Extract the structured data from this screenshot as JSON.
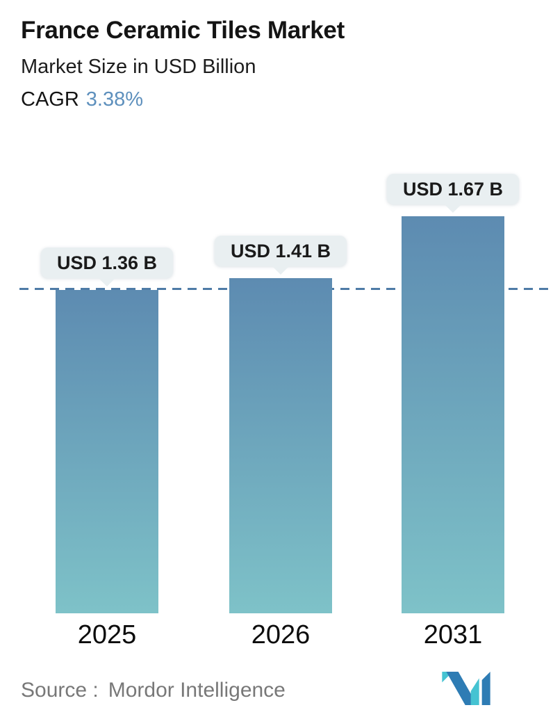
{
  "header": {
    "title": "France Ceramic Tiles Market",
    "subtitle": "Market Size in USD Billion",
    "cagr_label": "CAGR",
    "cagr_value": "3.38%"
  },
  "chart_data": {
    "type": "bar",
    "title": "France Ceramic Tiles Market",
    "subtitle": "Market Size in USD Billion",
    "unit": "USD Billion",
    "categories": [
      "2025",
      "2026",
      "2031"
    ],
    "values": [
      1.36,
      1.41,
      1.67
    ],
    "data_labels": [
      "USD 1.36 B",
      "USD 1.41 B",
      "USD 1.67 B"
    ],
    "cagr_percent": 3.38,
    "reference_line": {
      "style": "dashed",
      "at_value": 1.36,
      "note": "horizontal dashed line at 2025 bar top"
    },
    "ylim": [
      0,
      2.13
    ],
    "y_axis_visible": false,
    "grid": false,
    "legend": false,
    "colors": {
      "bar_gradient_top": "#5d8bb1",
      "bar_gradient_bottom": "#7ec2c8",
      "dashed_line": "#4e7ba6",
      "tooltip_bg": "#e9eff1",
      "accent": "#5e90bd"
    }
  },
  "footer": {
    "source_label": "Source :",
    "source_value": "Mordor Intelligence",
    "logo": "mordor-intelligence-logo",
    "logo_colors": {
      "blue": "#2e7cb4",
      "teal": "#45c3d2"
    }
  }
}
